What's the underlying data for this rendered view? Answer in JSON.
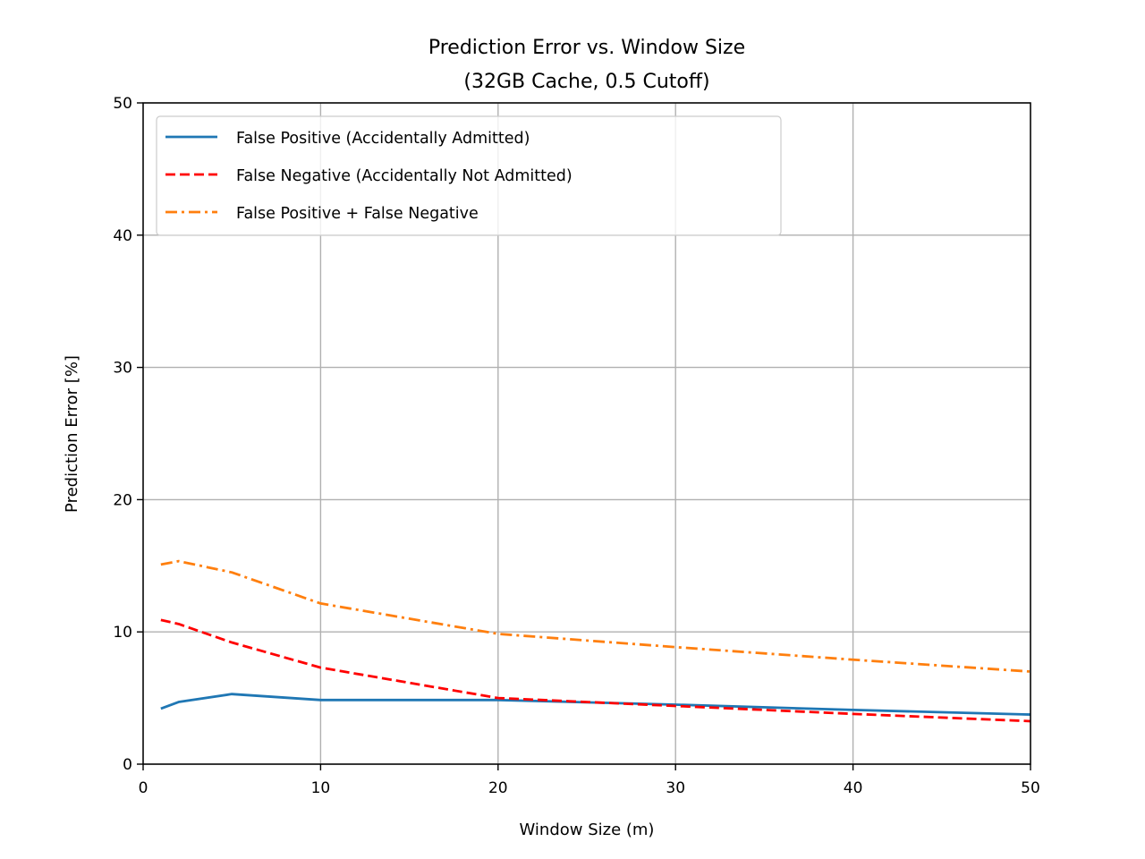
{
  "chart_data": {
    "type": "line",
    "title": "Prediction Error vs. Window Size",
    "subtitle": "(32GB Cache, 0.5 Cutoff)",
    "xlabel": "Window Size (m)",
    "ylabel": "Prediction Error [%]",
    "xlim": [
      0,
      50
    ],
    "ylim": [
      0,
      50
    ],
    "xticks": [
      "0",
      "10",
      "20",
      "30",
      "40",
      "50"
    ],
    "yticks": [
      "0",
      "10",
      "20",
      "30",
      "40",
      "50"
    ],
    "grid": true,
    "legend_position": "top-left",
    "x": [
      1,
      2,
      5,
      10,
      20,
      30,
      40,
      50
    ],
    "series": [
      {
        "name": "False Positive (Accidentally Admitted)",
        "color": "#1f77b4",
        "style": "solid",
        "values": [
          4.2,
          4.7,
          5.3,
          4.85,
          4.85,
          4.5,
          4.1,
          3.75
        ]
      },
      {
        "name": "False Negative (Accidentally Not Admitted)",
        "color": "#ff0000",
        "style": "dashed",
        "values": [
          10.9,
          10.6,
          9.2,
          7.3,
          5.0,
          4.4,
          3.8,
          3.25
        ]
      },
      {
        "name": "False Positive + False Negative",
        "color": "#ff7f0e",
        "style": "dashdot",
        "values": [
          15.1,
          15.35,
          14.5,
          12.15,
          9.85,
          8.85,
          7.9,
          7.0
        ]
      }
    ]
  }
}
